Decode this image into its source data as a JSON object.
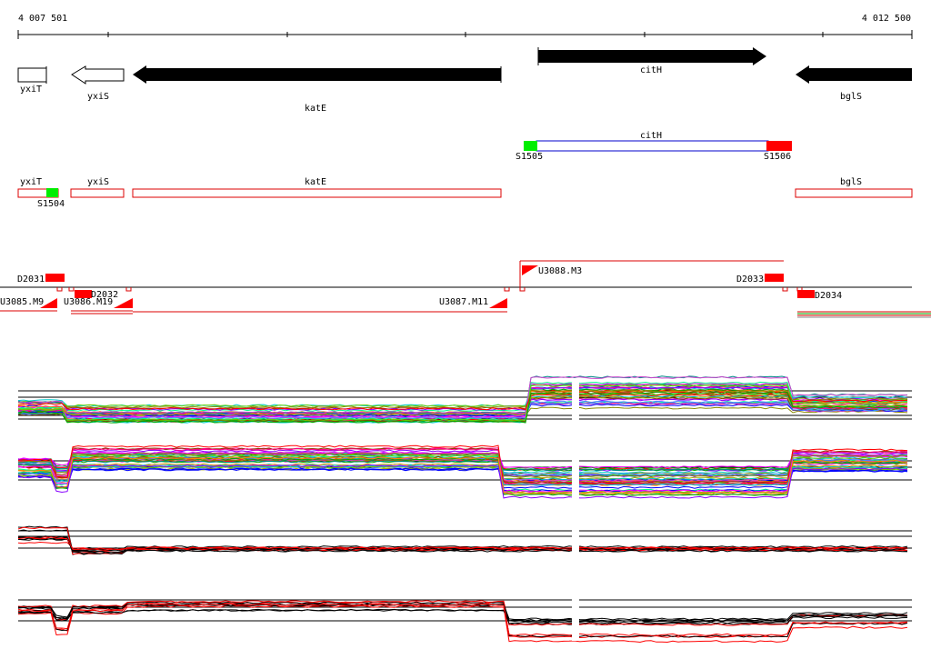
{
  "ruler": {
    "start_label": "4 007 501",
    "end_label": "4 012 500"
  },
  "genes": {
    "yxiT": "yxiT",
    "yxiS": "yxiS",
    "katE": "katE",
    "citH": "citH",
    "bglS": "bglS"
  },
  "transcripts": {
    "citH": "citH",
    "yxiT": "yxiT",
    "yxiS": "yxiS",
    "katE": "katE",
    "bglS": "bglS"
  },
  "sites": {
    "S1504": "S1504",
    "S1505": "S1505",
    "S1506": "S1506"
  },
  "features": {
    "D2031": "D2031",
    "D2032": "D2032",
    "D2033": "D2033",
    "D2034": "D2034",
    "U3085": "U3085.M9",
    "U3086": "U3086.M19",
    "U3087": "U3087.M11",
    "U3088": "U3088.M3"
  },
  "colors": {
    "gene_fill": "#000000",
    "site_green": "#00ee00",
    "site_red": "#ff0000",
    "transcript_outline": "#dd0000",
    "citH_outline": "#0000cc"
  },
  "expression_panels": [
    {
      "name": "panel-1",
      "trend": "high-after-citH"
    },
    {
      "name": "panel-2",
      "trend": "low-after-katE"
    },
    {
      "name": "panel-3",
      "trend": "flat-black-red"
    },
    {
      "name": "panel-4",
      "trend": "black-red-steps"
    }
  ]
}
